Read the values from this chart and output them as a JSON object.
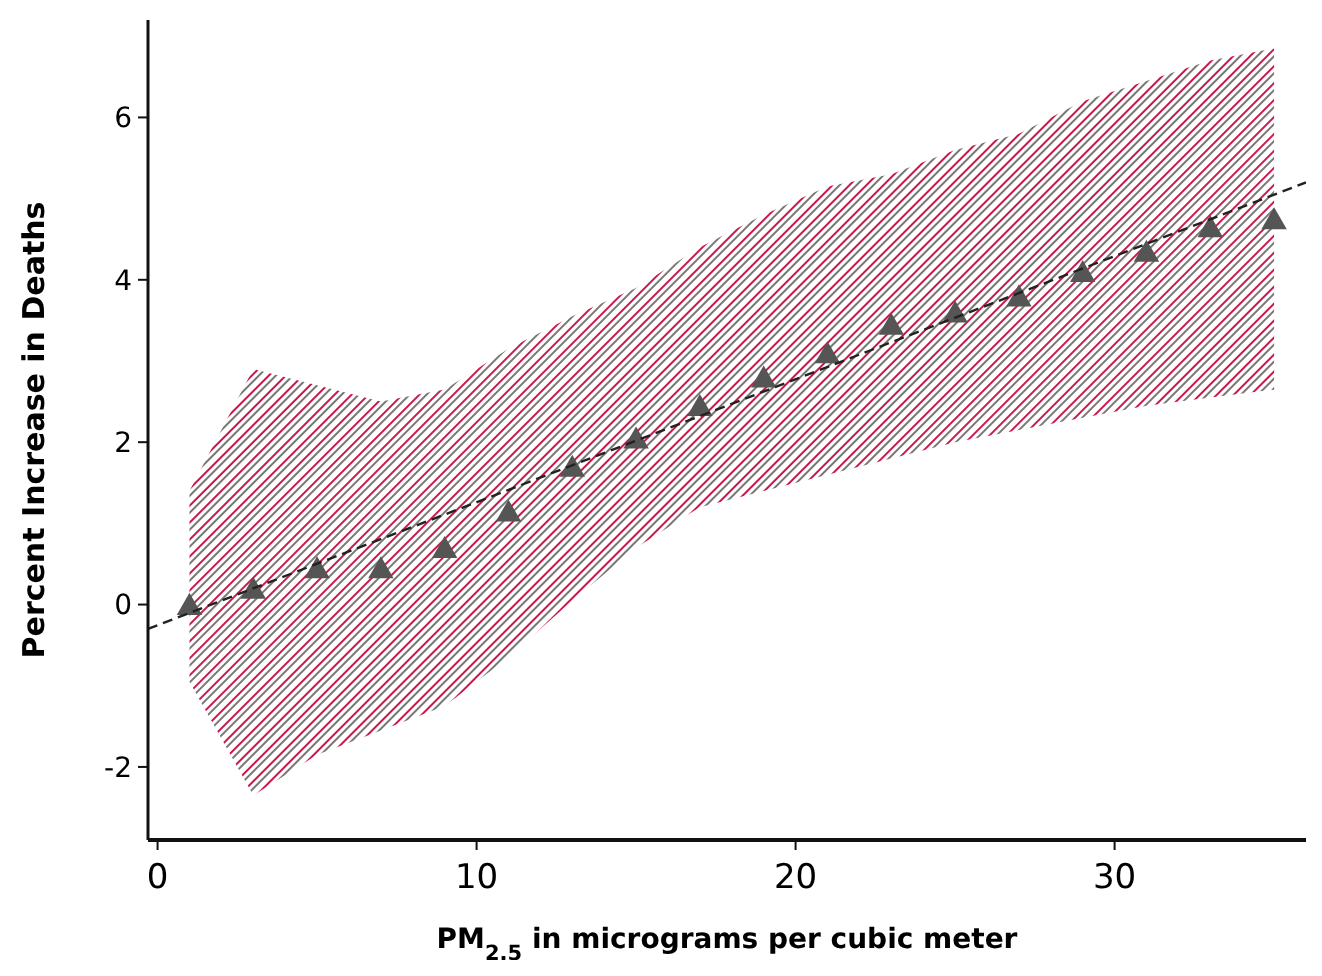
{
  "chart_data": {
    "type": "scatter",
    "xlabel": "PM$_{2.5}$ in micrograms per cubic meter",
    "ylabel": "Percent Increase in Deaths",
    "xlim": [
      -0.3,
      36
    ],
    "xticks": [
      0,
      10,
      20,
      30
    ],
    "ylim": [
      -2.9,
      7.2
    ],
    "yticks": [
      -2,
      0,
      2,
      4,
      6
    ],
    "grid": false,
    "series": [
      {
        "marker": "triangle",
        "color": "#555555",
        "x": [
          1,
          3,
          5,
          7,
          9,
          11,
          13,
          15,
          17,
          19,
          21,
          23,
          25,
          27,
          29,
          31,
          33,
          35
        ],
        "values": [
          0.0,
          0.2,
          0.45,
          0.45,
          0.7,
          1.15,
          1.7,
          2.05,
          2.45,
          2.8,
          3.1,
          3.45,
          3.6,
          3.8,
          4.1,
          4.35,
          4.65,
          4.75
        ],
        "lower": [
          -0.95,
          -2.35,
          -1.85,
          -1.55,
          -1.25,
          -0.65,
          0.05,
          0.7,
          1.2,
          1.4,
          1.6,
          1.8,
          2.0,
          2.15,
          2.3,
          2.45,
          2.55,
          2.65
        ],
        "upper": [
          1.4,
          2.9,
          2.7,
          2.5,
          2.65,
          3.15,
          3.55,
          3.9,
          4.4,
          4.8,
          5.15,
          5.3,
          5.6,
          5.8,
          6.2,
          6.45,
          6.7,
          6.85
        ]
      },
      {
        "type": "line",
        "line_style": "dashed",
        "marker": "none",
        "color": "#222222",
        "x": [
          -0.3,
          36
        ],
        "values": [
          -0.3,
          5.2
        ]
      }
    ]
  }
}
